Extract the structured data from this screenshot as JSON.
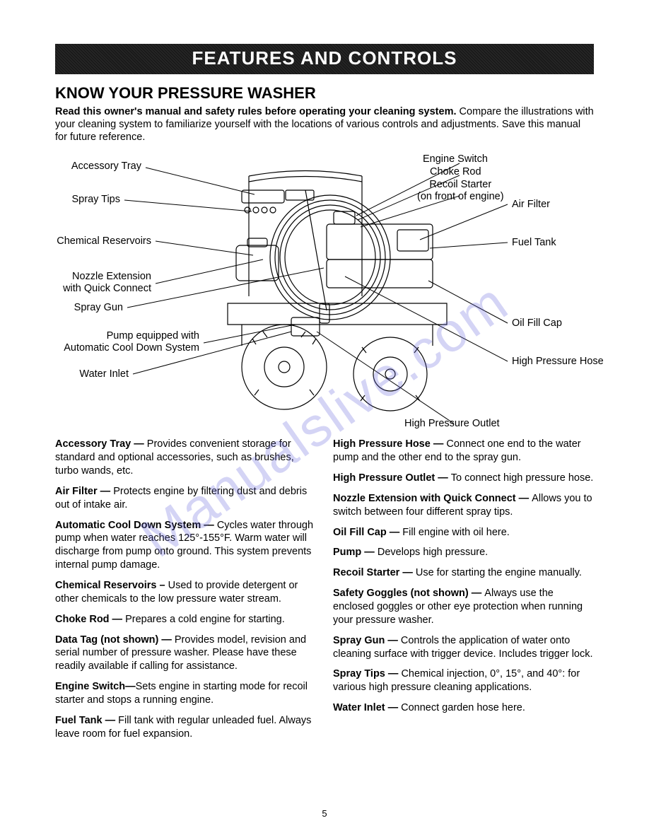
{
  "banner": "FEATURES AND CONTROLS",
  "subtitle": "KNOW YOUR PRESSURE WASHER",
  "intro_bold": "Read this owner's manual and safety rules before operating your cleaning system.",
  "intro_rest": "Compare the illustrations with your cleaning system to familiarize yourself with the locations of various controls and adjustments. Save this manual for future reference.",
  "watermark": "Manualslive.com",
  "page_number": "5",
  "labels": {
    "left": [
      "Accessory Tray",
      "Spray Tips",
      "Chemical Reservoirs",
      "Nozzle Extension\nwith Quick Connect",
      "Spray Gun",
      "Pump equipped with\nAutomatic Cool Down System",
      "Water Inlet"
    ],
    "top": [
      "Engine Switch",
      "Choke Rod",
      "Recoil Starter\n(on front of engine)"
    ],
    "right": [
      "Air Filter",
      "Fuel Tank",
      "Oil Fill Cap",
      "High Pressure Hose"
    ],
    "bottom": [
      "High Pressure Outlet"
    ]
  },
  "defs_left": [
    {
      "term": "Accessory Tray — ",
      "text": "Provides convenient storage for standard and optional accessories, such as brushes, turbo wands, etc."
    },
    {
      "term": "Air Filter — ",
      "text": "Protects engine by filtering dust and debris out of intake air."
    },
    {
      "term": "Automatic Cool Down System — ",
      "text": "Cycles water through pump when water reaches 125°-155°F. Warm water will discharge from pump onto ground. This system prevents internal pump damage."
    },
    {
      "term": "Chemical Reservoirs – ",
      "text": "Used to provide detergent or other chemicals to the low pressure water stream."
    },
    {
      "term": "Choke Rod — ",
      "text": "Prepares a cold engine for starting."
    },
    {
      "term": "Data Tag (not shown) — ",
      "text": "Provides model, revision and serial number of pressure washer. Please have these readily available if calling for assistance."
    },
    {
      "term": "Engine Switch—",
      "text": "Sets engine in starting mode for recoil starter and stops a running engine."
    },
    {
      "term": "Fuel Tank — ",
      "text": "Fill tank with regular unleaded fuel. Always leave room for fuel expansion."
    }
  ],
  "defs_right": [
    {
      "term": "High Pressure Hose — ",
      "text": "Connect one end to the water pump and the other end to the spray gun."
    },
    {
      "term": "High Pressure Outlet — ",
      "text": "To connect high pressure hose."
    },
    {
      "term": "Nozzle Extension with Quick Connect — ",
      "text": "Allows you to switch between four different spray tips."
    },
    {
      "term": "Oil Fill Cap — ",
      "text": "Fill engine with oil here."
    },
    {
      "term": "Pump — ",
      "text": "Develops high pressure."
    },
    {
      "term": "Recoil Starter — ",
      "text": "Use for starting the engine manually."
    },
    {
      "term": "Safety Goggles (not shown) — ",
      "text": "Always use the enclosed goggles or other eye protection when running your pressure washer."
    },
    {
      "term": "Spray Gun — ",
      "text": "Controls the application of water onto cleaning surface with trigger device. Includes trigger lock."
    },
    {
      "term": "Spray Tips — ",
      "text": "Chemical injection, 0°, 15°, and 40°: for various high pressure cleaning applications."
    },
    {
      "term": "Water Inlet — ",
      "text": "Connect garden hose here."
    }
  ],
  "colors": {
    "banner_bg": "#1a1a1a",
    "banner_text": "#ffffff",
    "body_text": "#000000",
    "watermark": "rgba(100,100,220,0.28)"
  },
  "typography": {
    "banner_fontsize": 26,
    "subtitle_fontsize": 22,
    "body_fontsize": 14.5,
    "pagenum_fontsize": 13
  }
}
